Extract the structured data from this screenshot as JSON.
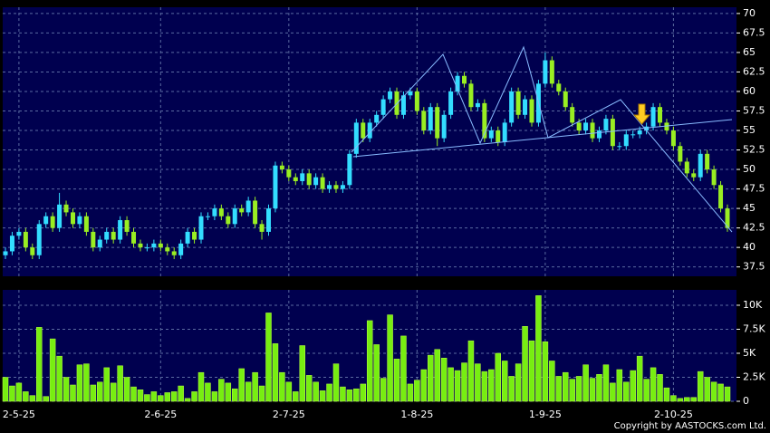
{
  "chart_data": [
    {
      "type": "candlestick",
      "categories": [
        null,
        null,
        "2-5-25",
        null,
        null,
        null,
        null,
        null,
        null,
        null,
        null,
        null,
        null,
        null,
        null,
        null,
        null,
        null,
        null,
        null,
        null,
        null,
        null,
        "2-6-25",
        null,
        null,
        null,
        null,
        null,
        null,
        null,
        null,
        null,
        null,
        null,
        null,
        null,
        null,
        null,
        null,
        null,
        null,
        "2-7-25",
        null,
        null,
        null,
        null,
        null,
        null,
        null,
        null,
        null,
        null,
        null,
        null,
        null,
        null,
        null,
        null,
        null,
        null,
        "1-8-25",
        null,
        null,
        null,
        null,
        null,
        null,
        null,
        null,
        null,
        null,
        null,
        null,
        null,
        null,
        null,
        null,
        null,
        null,
        "1-9-25",
        null,
        null,
        null,
        null,
        null,
        null,
        null,
        null,
        null,
        null,
        null,
        null,
        null,
        null,
        null,
        null,
        null,
        null,
        "2-10-25",
        null,
        null,
        null,
        null,
        null,
        null,
        null,
        null
      ],
      "open": [
        39,
        39.5,
        41.5,
        42,
        40,
        39,
        43,
        44,
        42.5,
        45.5,
        44.5,
        43,
        44,
        42,
        40,
        41,
        42,
        41,
        43.5,
        42,
        40.5,
        40,
        40,
        40.5,
        40,
        39.5,
        39,
        40.5,
        42,
        41,
        44,
        44,
        45,
        44,
        43,
        45,
        44.5,
        46,
        43,
        42,
        45,
        50.5,
        50,
        49,
        48.5,
        49.5,
        48,
        49,
        47.5,
        48,
        47.5,
        48,
        52,
        56,
        54,
        56,
        57,
        59,
        60,
        57,
        59.5,
        60,
        57.5,
        55,
        58,
        54,
        57,
        60,
        62,
        61,
        58,
        58.5,
        54,
        55,
        53.5,
        56,
        60,
        57,
        59,
        56,
        61,
        64,
        61,
        60,
        58,
        56,
        55,
        56,
        54,
        55,
        56.5,
        53,
        53,
        54.5,
        54.5,
        55,
        55.5,
        58,
        56,
        55,
        53,
        51,
        49.5,
        49,
        52,
        50,
        48,
        45
      ],
      "high": [
        40,
        42,
        42.5,
        42.5,
        40.5,
        43.5,
        44.5,
        44.5,
        47,
        46,
        45,
        44.5,
        44.5,
        42.5,
        41.5,
        42.5,
        42.5,
        44,
        44,
        42.5,
        41,
        40.5,
        41,
        41,
        40.5,
        40,
        41,
        42.5,
        42.5,
        44.5,
        44.5,
        45.5,
        45.5,
        44.5,
        45.5,
        45.5,
        46.5,
        46.5,
        43.5,
        45.5,
        51,
        51,
        50.5,
        49.5,
        50,
        50,
        49.5,
        49.5,
        48.5,
        48.5,
        48.5,
        52.5,
        56.5,
        56.5,
        56.5,
        57.5,
        59.5,
        60.5,
        60.5,
        60,
        60.5,
        60.5,
        58,
        58.5,
        58.5,
        57.5,
        60.5,
        62.5,
        62.5,
        61.5,
        59,
        59,
        55.5,
        55.5,
        56.5,
        60.5,
        60.5,
        59.5,
        59.5,
        61.5,
        65,
        64.5,
        61.5,
        60.5,
        58.5,
        56.5,
        56.5,
        56.5,
        55.5,
        57,
        57,
        53.5,
        55,
        55,
        55.5,
        56,
        58.5,
        58.5,
        56.5,
        55.5,
        53.5,
        51.5,
        50,
        52.5,
        52.5,
        50.5,
        48.5,
        45.5
      ],
      "low": [
        38.5,
        39,
        41,
        39.5,
        38.5,
        38.5,
        42.5,
        42,
        42,
        44,
        42.5,
        42.5,
        41.5,
        39.5,
        39.5,
        40.5,
        40.5,
        40.5,
        41.5,
        40,
        39.5,
        39.5,
        39.5,
        39.5,
        39,
        38.5,
        38.5,
        40,
        40.5,
        40.5,
        43.5,
        43.5,
        43.5,
        42.5,
        42.5,
        44,
        44,
        42.5,
        41,
        41.5,
        44.5,
        49.5,
        48.5,
        48,
        48,
        47.5,
        47.5,
        47,
        47,
        47,
        47,
        47.5,
        51.5,
        53.5,
        53.5,
        55.5,
        56.5,
        58.5,
        56.5,
        56.5,
        59,
        57,
        54.5,
        54.5,
        53,
        53.5,
        56.5,
        59.5,
        60.5,
        57.5,
        57.5,
        53.5,
        53.5,
        53,
        53,
        55.5,
        56.5,
        56.5,
        55.5,
        55.5,
        60.5,
        60.5,
        59.5,
        57.5,
        55.5,
        54.5,
        54.5,
        53.5,
        53.5,
        54.5,
        52.5,
        52.5,
        52.5,
        54,
        54,
        54.5,
        55,
        55.5,
        54.5,
        52.5,
        50.5,
        49,
        48.5,
        48.5,
        49.5,
        47.5,
        44.5,
        42
      ],
      "close": [
        39.5,
        41.5,
        42,
        40,
        39,
        43,
        44,
        42.5,
        45.5,
        44.5,
        43,
        44,
        42,
        40,
        41,
        42,
        41,
        43.5,
        42,
        40.5,
        40,
        40,
        40.5,
        40,
        39.5,
        39,
        40.5,
        42,
        41,
        44,
        44,
        45,
        44,
        43,
        45,
        44.5,
        46,
        43,
        42,
        45,
        50.5,
        50,
        49,
        48.5,
        49.5,
        48,
        49,
        47.5,
        48,
        47.5,
        48,
        52,
        56,
        54,
        56,
        57,
        59,
        60,
        57,
        59.5,
        60,
        57.5,
        55,
        58,
        54,
        57,
        60,
        62,
        61,
        58,
        58.5,
        54,
        55,
        53.5,
        56,
        60,
        57,
        59,
        56,
        61,
        64,
        61,
        60,
        58,
        56,
        55,
        56,
        54,
        55,
        56.5,
        53,
        53,
        54.5,
        54.5,
        55,
        55.5,
        58,
        56,
        55,
        53,
        51,
        49.5,
        49,
        52,
        50,
        48,
        45,
        42.5
      ],
      "up_color": "#33ddff",
      "down_color": "#99ee22",
      "ylim": [
        36.3,
        70.8
      ],
      "yticks": [
        37.5,
        40,
        42.5,
        45,
        47.5,
        50,
        52.5,
        55,
        57.5,
        60,
        62.5,
        65,
        67.5,
        70
      ],
      "grid": true
    },
    {
      "type": "bar",
      "values": [
        2500,
        1600,
        1900,
        1000,
        600,
        7700,
        500,
        6500,
        4700,
        2500,
        1700,
        3800,
        3900,
        1700,
        2000,
        3500,
        1900,
        3700,
        2500,
        1500,
        1200,
        700,
        1000,
        600,
        900,
        1000,
        1600,
        300,
        1000,
        3000,
        1900,
        1000,
        2300,
        1900,
        1300,
        3400,
        2000,
        3000,
        1600,
        9200,
        6000,
        3000,
        2000,
        1000,
        5800,
        2700,
        2000,
        1100,
        1800,
        3900,
        1500,
        1200,
        1300,
        1800,
        8400,
        5900,
        2400,
        9000,
        4400,
        6800,
        1800,
        2200,
        3300,
        4800,
        5400,
        4500,
        3500,
        3200,
        4000,
        6300,
        3900,
        3100,
        3300,
        5000,
        4200,
        2600,
        3900,
        7800,
        6300,
        11000,
        6200,
        4200,
        2600,
        3000,
        2300,
        2600,
        3800,
        2400,
        2800,
        3800,
        1900,
        3300,
        2000,
        3200,
        4700,
        2300,
        3500,
        2800,
        1400,
        600,
        300,
        400,
        400,
        3100,
        2500,
        2000,
        1800,
        1500
      ],
      "color": "#77ee11",
      "ylim": [
        0,
        11600
      ],
      "yticks": [
        0,
        {
          "value": 2500,
          "label": "2.5K"
        },
        {
          "value": 5000,
          "label": "5K"
        },
        {
          "value": 7500,
          "label": "7.5K"
        },
        {
          "value": 10000,
          "label": "10K"
        }
      ],
      "grid": true
    }
  ],
  "copyright": "Copyright by AASTOCKS.com Ltd."
}
